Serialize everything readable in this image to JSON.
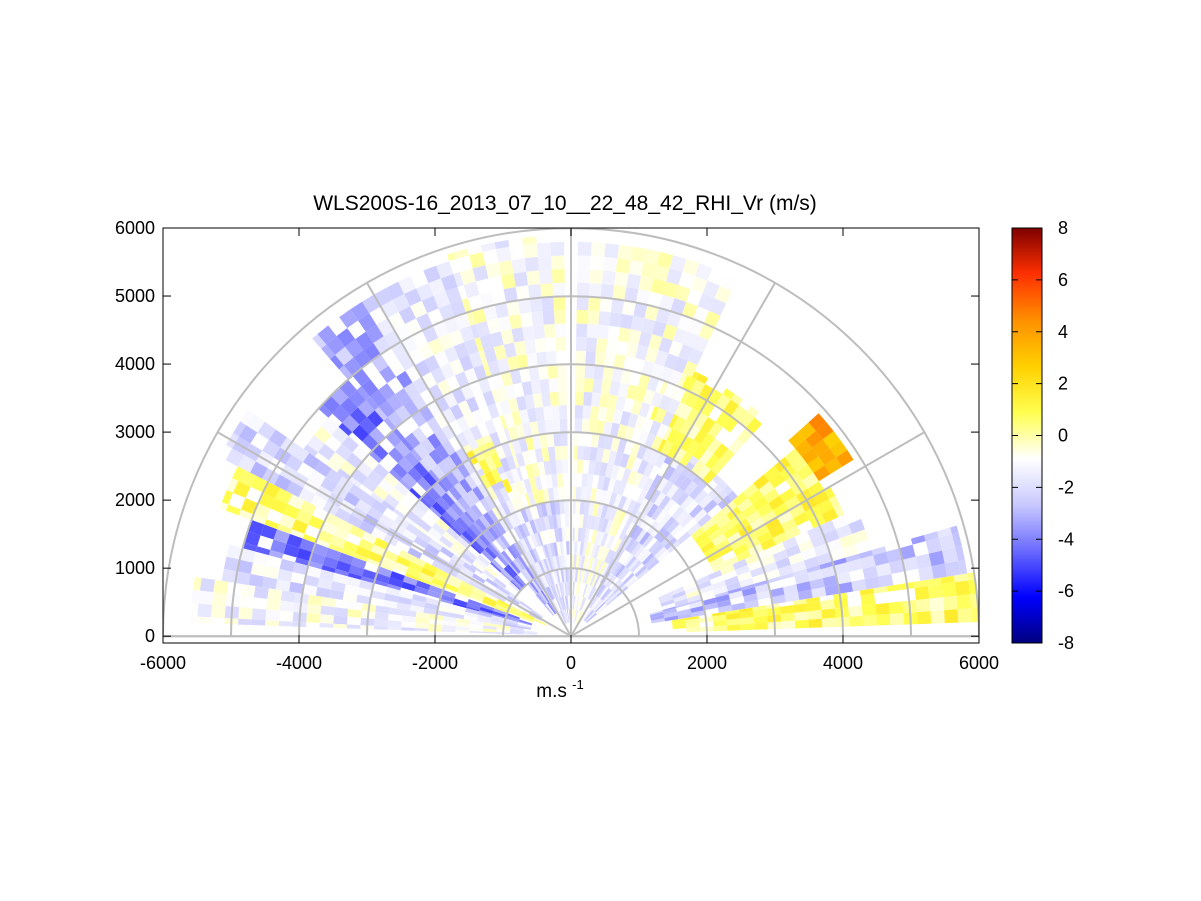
{
  "chart_data": {
    "type": "heatmap",
    "subtype": "polar RHI (range-height indicator) scan",
    "title": "WLS200S-16_2013_07_10__22_48_42_RHI_Vr (m/s)",
    "xlabel": "m.s",
    "xlabel_superscript": "-1",
    "ylabel": "",
    "xlim": [
      -6000,
      6000
    ],
    "ylim": [
      -100,
      6000
    ],
    "xticks": [
      -6000,
      -4000,
      -2000,
      0,
      2000,
      4000,
      6000
    ],
    "yticks": [
      0,
      1000,
      2000,
      3000,
      4000,
      5000,
      6000
    ],
    "polar_grid": {
      "range_rings": [
        1000,
        2000,
        3000,
        4000,
        5000,
        6000
      ],
      "spokes_deg": [
        0,
        30,
        60,
        90,
        120,
        150,
        180
      ]
    },
    "colorbar": {
      "range": [
        -8,
        8
      ],
      "ticks": [
        -8,
        -6,
        -4,
        -2,
        0,
        2,
        4,
        6,
        8
      ],
      "colormap": [
        "#00007f",
        "#0000ff",
        "#6a6aff",
        "#c9c9ff",
        "#ffffff",
        "#ffff50",
        "#ffd000",
        "#ff9000",
        "#ff3000",
        "#7f0000"
      ]
    },
    "sectors": [
      {
        "az_start": 2,
        "az_end": 9,
        "r_start": 1500,
        "r_end": 6000,
        "vr": 0.6
      },
      {
        "az_start": 9,
        "az_end": 16,
        "r_start": 1200,
        "r_end": 5900,
        "vr": -2.6
      },
      {
        "az_start": 16,
        "az_end": 24,
        "r_start": 1400,
        "r_end": 4600,
        "vr": -1.4
      },
      {
        "az_start": 24,
        "az_end": 40,
        "r_start": 2300,
        "r_end": 4400,
        "vr": 0.7
      },
      {
        "az_start": 32,
        "az_end": 42,
        "r_start": 4300,
        "r_end": 4900,
        "vr": 3.6
      },
      {
        "az_start": 40,
        "az_end": 62,
        "r_start": 300,
        "r_end": 3200,
        "vr": -2.0
      },
      {
        "az_start": 48,
        "az_end": 70,
        "r_start": 3000,
        "r_end": 4300,
        "vr": 0.6
      },
      {
        "az_start": 62,
        "az_end": 89,
        "r_start": 200,
        "r_end": 3000,
        "vr": -1.2
      },
      {
        "az_start": 65,
        "az_end": 89,
        "r_start": 3000,
        "r_end": 5800,
        "vr": -1.0
      },
      {
        "az_start": 91,
        "az_end": 108,
        "r_start": 200,
        "r_end": 2000,
        "vr": -1.8
      },
      {
        "az_start": 91,
        "az_end": 108,
        "r_start": 2000,
        "r_end": 5900,
        "vr": -1.0
      },
      {
        "az_start": 108,
        "az_end": 122,
        "r_start": 200,
        "r_end": 2000,
        "vr": -2.0
      },
      {
        "az_start": 108,
        "az_end": 122,
        "r_start": 2000,
        "r_end": 5800,
        "vr": -1.5
      },
      {
        "az_start": 112,
        "az_end": 120,
        "r_start": 2300,
        "r_end": 3200,
        "vr": 0.6
      },
      {
        "az_start": 122,
        "az_end": 131,
        "r_start": 400,
        "r_end": 5800,
        "vr": -3.0
      },
      {
        "az_start": 131,
        "az_end": 138,
        "r_start": 1000,
        "r_end": 5000,
        "vr": -4.0
      },
      {
        "az_start": 138,
        "az_end": 145,
        "r_start": 1000,
        "r_end": 4800,
        "vr": -1.4
      },
      {
        "az_start": 145,
        "az_end": 153,
        "r_start": 500,
        "r_end": 5800,
        "vr": -2.0
      },
      {
        "az_start": 153,
        "az_end": 160,
        "r_start": 400,
        "r_end": 5500,
        "vr": 0.5
      },
      {
        "az_start": 160,
        "az_end": 165,
        "r_start": 600,
        "r_end": 5000,
        "vr": -4.2
      },
      {
        "az_start": 165,
        "az_end": 171,
        "r_start": 600,
        "r_end": 5200,
        "vr": -1.8
      },
      {
        "az_start": 171,
        "az_end": 178,
        "r_start": 500,
        "r_end": 5600,
        "vr": -1.2
      }
    ]
  }
}
